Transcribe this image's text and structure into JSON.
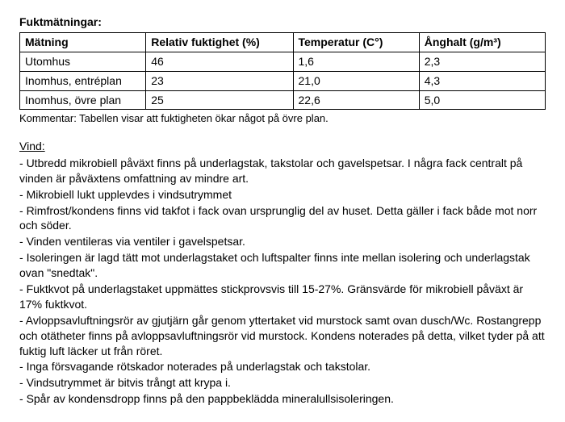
{
  "moisture": {
    "title": "Fuktmätningar:",
    "table": {
      "columns": [
        "Mätning",
        "Relativ fuktighet (%)",
        "Temperatur (C°)",
        "Ånghalt (g/m³)"
      ],
      "rows": [
        [
          "Utomhus",
          "46",
          "1,6",
          "2,3"
        ],
        [
          "Inomhus, entréplan",
          "23",
          "21,0",
          "4,3"
        ],
        [
          "Inomhus, övre plan",
          "25",
          "22,6",
          "5,0"
        ]
      ]
    },
    "comment": "Kommentar: Tabellen visar att fuktigheten ökar något på övre plan."
  },
  "attic": {
    "heading": "Vind:",
    "items": [
      "Utbredd mikrobiell påväxt finns på underlagstak, takstolar och gavelspetsar. I några fack centralt på vinden är påväxtens omfattning av mindre art.",
      "Mikrobiell lukt upplevdes i vindsutrymmet",
      "Rimfrost/kondens finns vid takfot i fack ovan ursprunglig del av huset. Detta gäller i fack både mot norr och söder.",
      "Vinden ventileras via ventiler i gavelspetsar.",
      "Isoleringen är lagd tätt mot underlagstaket och luftspalter finns inte mellan isolering och underlagstak ovan \"snedtak\".",
      "Fuktkvot på underlagstaket uppmättes stickprovsvis till 15-27%. Gränsvärde för mikrobiell påväxt är 17% fuktkvot.",
      "Avloppsavluftningsrör av gjutjärn går genom yttertaket vid murstock samt ovan dusch/Wc. Rostangrepp och otätheter finns på avloppsavluftningsrör vid murstock. Kondens noterades på detta, vilket tyder på att fuktig luft läcker ut från röret.",
      "Inga försvagande rötskador noterades på underlagstak och takstolar.",
      "Vindsutrymmet är bitvis trångt att krypa i.",
      "Spår av kondensdropp finns på den pappbeklädda mineralullsisoleringen."
    ]
  }
}
